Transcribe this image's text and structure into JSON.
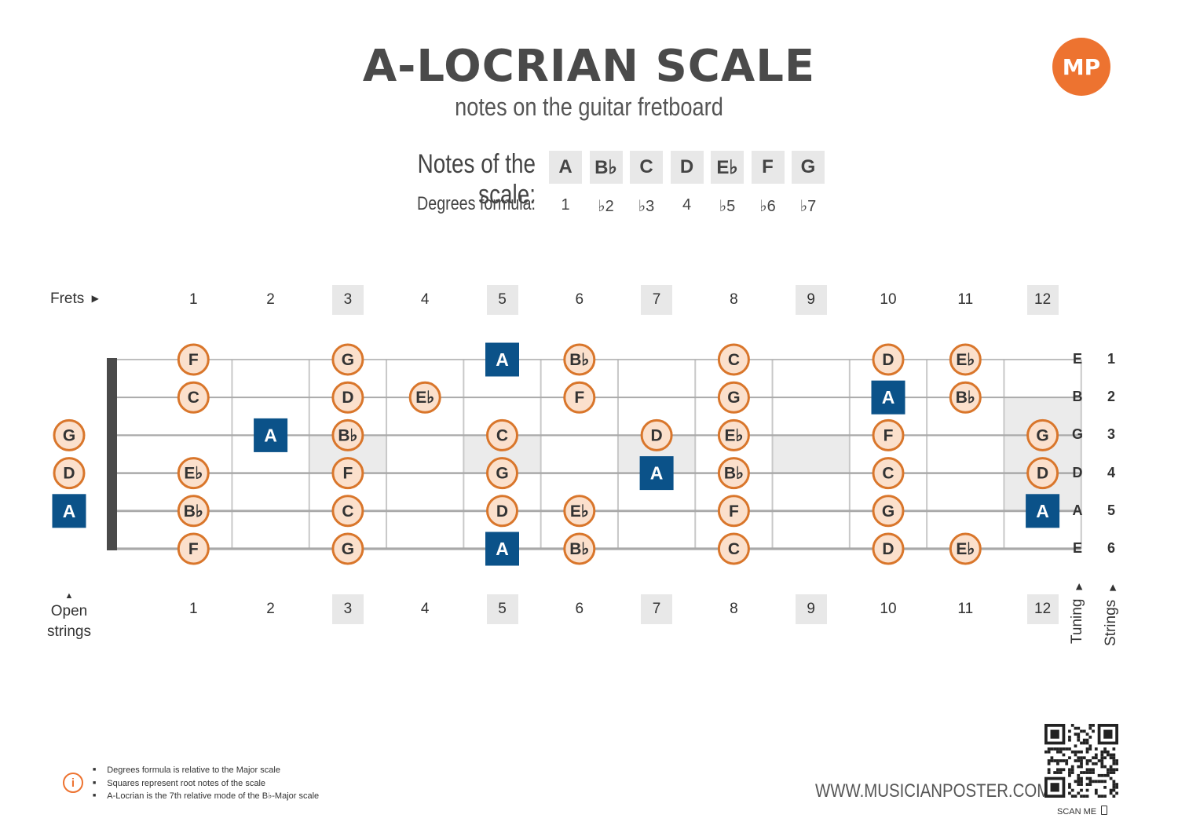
{
  "header": {
    "title": "A-LOCRIAN SCALE",
    "subtitle": "notes on the guitar fretboard",
    "logo_text": "MP"
  },
  "scale": {
    "notes_label": "Notes of the scale:",
    "degrees_label": "Degrees formula:",
    "notes": [
      "A",
      "B♭",
      "C",
      "D",
      "E♭",
      "F",
      "G"
    ],
    "degrees": [
      "1",
      "♭2",
      "♭3",
      "4",
      "♭5",
      "♭6",
      "♭7"
    ]
  },
  "fretboard": {
    "frets_label": "Frets",
    "open_label": "Open strings",
    "tuning_label": "Tuning",
    "strings_label": "Strings",
    "fret_numbers": [
      "1",
      "2",
      "3",
      "4",
      "5",
      "6",
      "7",
      "8",
      "9",
      "10",
      "11",
      "12"
    ],
    "highlighted_frets": [
      3,
      5,
      7,
      9,
      12
    ],
    "tuning": [
      "E",
      "B",
      "G",
      "D",
      "A",
      "E"
    ],
    "string_numbers": [
      "1",
      "2",
      "3",
      "4",
      "5",
      "6"
    ],
    "positions": [
      {
        "string": 1,
        "fret": 1,
        "note": "F"
      },
      {
        "string": 1,
        "fret": 3,
        "note": "G"
      },
      {
        "string": 1,
        "fret": 5,
        "note": "A",
        "root": true
      },
      {
        "string": 1,
        "fret": 6,
        "note": "B♭"
      },
      {
        "string": 1,
        "fret": 8,
        "note": "C"
      },
      {
        "string": 1,
        "fret": 10,
        "note": "D"
      },
      {
        "string": 1,
        "fret": 11,
        "note": "E♭"
      },
      {
        "string": 2,
        "fret": 1,
        "note": "C"
      },
      {
        "string": 2,
        "fret": 3,
        "note": "D"
      },
      {
        "string": 2,
        "fret": 4,
        "note": "E♭"
      },
      {
        "string": 2,
        "fret": 6,
        "note": "F"
      },
      {
        "string": 2,
        "fret": 8,
        "note": "G"
      },
      {
        "string": 2,
        "fret": 10,
        "note": "A",
        "root": true
      },
      {
        "string": 2,
        "fret": 11,
        "note": "B♭"
      },
      {
        "string": 3,
        "fret": 0,
        "note": "G"
      },
      {
        "string": 3,
        "fret": 2,
        "note": "A",
        "root": true
      },
      {
        "string": 3,
        "fret": 3,
        "note": "B♭"
      },
      {
        "string": 3,
        "fret": 5,
        "note": "C"
      },
      {
        "string": 3,
        "fret": 7,
        "note": "D"
      },
      {
        "string": 3,
        "fret": 8,
        "note": "E♭"
      },
      {
        "string": 3,
        "fret": 10,
        "note": "F"
      },
      {
        "string": 3,
        "fret": 12,
        "note": "G"
      },
      {
        "string": 4,
        "fret": 0,
        "note": "D"
      },
      {
        "string": 4,
        "fret": 1,
        "note": "E♭"
      },
      {
        "string": 4,
        "fret": 3,
        "note": "F"
      },
      {
        "string": 4,
        "fret": 5,
        "note": "G"
      },
      {
        "string": 4,
        "fret": 7,
        "note": "A",
        "root": true
      },
      {
        "string": 4,
        "fret": 8,
        "note": "B♭"
      },
      {
        "string": 4,
        "fret": 10,
        "note": "C"
      },
      {
        "string": 4,
        "fret": 12,
        "note": "D"
      },
      {
        "string": 5,
        "fret": 0,
        "note": "A",
        "root": true
      },
      {
        "string": 5,
        "fret": 1,
        "note": "B♭"
      },
      {
        "string": 5,
        "fret": 3,
        "note": "C"
      },
      {
        "string": 5,
        "fret": 5,
        "note": "D"
      },
      {
        "string": 5,
        "fret": 6,
        "note": "E♭"
      },
      {
        "string": 5,
        "fret": 8,
        "note": "F"
      },
      {
        "string": 5,
        "fret": 10,
        "note": "G"
      },
      {
        "string": 5,
        "fret": 12,
        "note": "A",
        "root": true
      },
      {
        "string": 6,
        "fret": 1,
        "note": "F"
      },
      {
        "string": 6,
        "fret": 3,
        "note": "G"
      },
      {
        "string": 6,
        "fret": 5,
        "note": "A",
        "root": true
      },
      {
        "string": 6,
        "fret": 6,
        "note": "B♭"
      },
      {
        "string": 6,
        "fret": 8,
        "note": "C"
      },
      {
        "string": 6,
        "fret": 10,
        "note": "D"
      },
      {
        "string": 6,
        "fret": 11,
        "note": "E♭"
      }
    ]
  },
  "footer": {
    "notes": [
      "Degrees formula is relative to the Major scale",
      "Squares represent root notes of the scale",
      "A-Locrian is the 7th relative mode of the B♭-Major scale"
    ],
    "info_icon": "i",
    "website": "WWW.MUSICIANPOSTER.COM",
    "scan_label": "SCAN ME"
  },
  "colors": {
    "root": "#0b5289",
    "note_fill": "#fbe0cc",
    "note_border": "#d9762b",
    "accent": "#ed7330"
  }
}
